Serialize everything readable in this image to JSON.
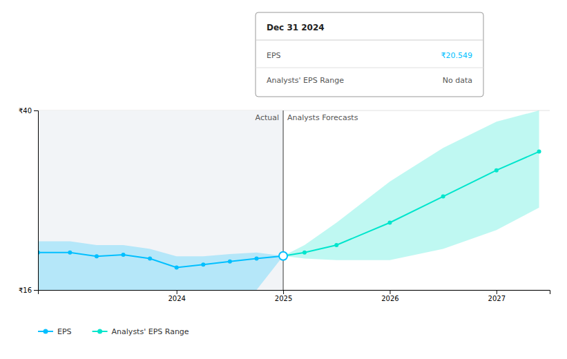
{
  "chart_data": {
    "type": "line",
    "xlim": [
      2022.7,
      2027.5
    ],
    "xticks": [
      2024,
      2025,
      2026,
      2027
    ],
    "ylim": [
      16,
      40
    ],
    "yticks": [
      {
        "value": 16,
        "label": "₹16"
      },
      {
        "value": 40,
        "label": "₹40"
      }
    ],
    "grid": true,
    "legend": "bottom",
    "divider_x": 2025.0,
    "annotations": [
      "Actual",
      "Analysts Forecasts"
    ],
    "series": [
      {
        "name": "EPS",
        "color": "#00bfff",
        "marker": "circle",
        "x": [
          2022.7,
          2023.0,
          2023.25,
          2023.5,
          2023.75,
          2024.0,
          2024.25,
          2024.5,
          2024.75,
          2025.0
        ],
        "values": [
          21.0,
          21.0,
          20.5,
          20.7,
          20.2,
          19.0,
          19.4,
          19.8,
          20.2,
          20.549
        ],
        "upper": [
          22.5,
          22.5,
          22.0,
          22.0,
          21.5,
          20.5,
          20.5,
          20.8,
          21.0,
          20.549
        ],
        "lower": [
          16,
          16,
          16,
          16,
          16,
          16,
          16,
          16,
          16,
          20.549
        ]
      },
      {
        "name": "Analysts' EPS Range",
        "color": "#00e5cc",
        "marker": "circle",
        "x": [
          2025.0,
          2025.2,
          2025.5,
          2026.0,
          2026.5,
          2027.0,
          2027.4
        ],
        "values": [
          20.549,
          21.0,
          22.0,
          25.0,
          28.5,
          32.0,
          34.5
        ],
        "upper": [
          20.549,
          22.0,
          25.0,
          30.5,
          35.0,
          38.5,
          40.0
        ],
        "lower": [
          20.549,
          20.2,
          20.0,
          20.0,
          21.5,
          24.0,
          27.0
        ]
      }
    ],
    "tooltip": {
      "title": "Dec 31 2024",
      "rows": [
        {
          "label": "EPS",
          "value": "₹20.549"
        },
        {
          "label": "Analysts' EPS Range",
          "value": "No data"
        }
      ]
    }
  }
}
